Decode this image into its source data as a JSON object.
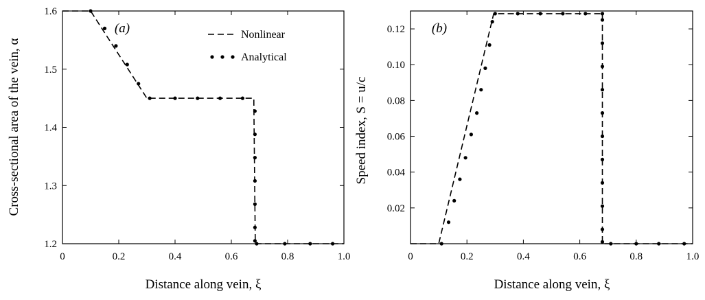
{
  "chart_data": [
    {
      "type": "line",
      "panel_label": "(a)",
      "xlabel": "Distance along vein, ξ",
      "ylabel": "Cross-sectional area of the vein, α",
      "xlim": [
        0,
        1.0
      ],
      "ylim": [
        1.2,
        1.6
      ],
      "xticks": [
        0,
        0.2,
        0.4,
        0.6,
        0.8,
        1.0
      ],
      "xtick_labels": [
        "0",
        "0.2",
        "0.4",
        "0.6",
        "0.8",
        "1.0"
      ],
      "yticks": [
        1.2,
        1.3,
        1.4,
        1.5,
        1.6
      ],
      "ytick_labels": [
        "1.2",
        "1.3",
        "1.4",
        "1.5",
        "1.6"
      ],
      "legend": {
        "placement": "top-right",
        "entries": [
          "Nonlinear",
          "Analytical"
        ]
      },
      "series": [
        {
          "name": "Nonlinear",
          "style": "dashed",
          "x": [
            0,
            0.1,
            0.3,
            0.68,
            0.68,
            0.685,
            1.0
          ],
          "y": [
            1.6,
            1.6,
            1.45,
            1.45,
            1.44,
            1.2,
            1.2
          ]
        },
        {
          "name": "Analytical",
          "style": "dots",
          "x": [
            0.1,
            0.15,
            0.19,
            0.23,
            0.27,
            0.31,
            0.4,
            0.48,
            0.56,
            0.64,
            0.684,
            0.684,
            0.684,
            0.684,
            0.684,
            0.684,
            0.684,
            0.69,
            0.79,
            0.88,
            0.96
          ],
          "y": [
            1.6,
            1.57,
            1.54,
            1.508,
            1.475,
            1.45,
            1.45,
            1.45,
            1.45,
            1.45,
            1.428,
            1.388,
            1.348,
            1.308,
            1.268,
            1.228,
            1.205,
            1.2,
            1.2,
            1.2,
            1.2
          ]
        }
      ]
    },
    {
      "type": "line",
      "panel_label": "(b)",
      "xlabel": "Distance along vein, ξ",
      "ylabel": "Speed index, S = u/c",
      "xlim": [
        0,
        1.0
      ],
      "ylim": [
        0,
        0.13
      ],
      "xticks": [
        0,
        0.2,
        0.4,
        0.6,
        0.8,
        1.0
      ],
      "xtick_labels": [
        "0",
        "0.2",
        "0.4",
        "0.6",
        "0.8",
        "1.0"
      ],
      "yticks": [
        0.02,
        0.04,
        0.06,
        0.08,
        0.1,
        0.12
      ],
      "ytick_labels": [
        "0.02",
        "0.04",
        "0.06",
        "0.08",
        "0.10",
        "0.12"
      ],
      "series": [
        {
          "name": "Nonlinear",
          "style": "dashed",
          "x": [
            0,
            0.1,
            0.295,
            0.68,
            0.68,
            1.0
          ],
          "y": [
            0,
            0,
            0.1285,
            0.1285,
            0,
            0
          ]
        },
        {
          "name": "Analytical",
          "style": "dots",
          "x": [
            0.11,
            0.135,
            0.155,
            0.175,
            0.195,
            0.215,
            0.235,
            0.25,
            0.265,
            0.28,
            0.29,
            0.3,
            0.38,
            0.46,
            0.54,
            0.62,
            0.68,
            0.68,
            0.68,
            0.68,
            0.68,
            0.68,
            0.68,
            0.68,
            0.68,
            0.68,
            0.68,
            0.68,
            0.71,
            0.8,
            0.88,
            0.97
          ],
          "y": [
            0,
            0.012,
            0.024,
            0.036,
            0.048,
            0.061,
            0.073,
            0.086,
            0.098,
            0.111,
            0.124,
            0.1285,
            0.1285,
            0.1285,
            0.1285,
            0.1285,
            0.1285,
            0.125,
            0.112,
            0.099,
            0.086,
            0.073,
            0.06,
            0.047,
            0.034,
            0.021,
            0.008,
            0.001,
            0,
            0,
            0,
            0
          ]
        }
      ]
    }
  ]
}
